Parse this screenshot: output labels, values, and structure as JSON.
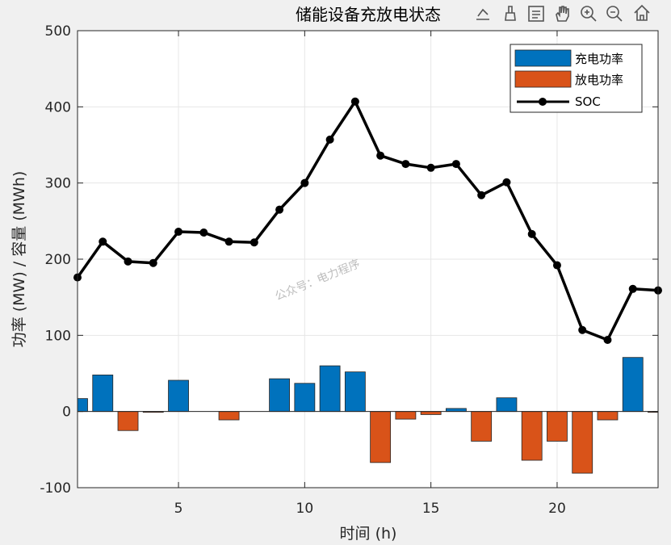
{
  "chart_data": {
    "type": "bar+line",
    "title": "储能设备充放电状态",
    "xlabel": "时间 (h)",
    "ylabel": "功率 (MW) / 容量 (MWh)",
    "xlim": [
      1,
      24
    ],
    "ylim": [
      -100,
      500
    ],
    "xticks": [
      5,
      10,
      15,
      20
    ],
    "yticks": [
      -100,
      0,
      100,
      200,
      300,
      400,
      500
    ],
    "grid": true,
    "legend_position": "top-right",
    "x": [
      1,
      2,
      3,
      4,
      5,
      6,
      7,
      8,
      9,
      10,
      11,
      12,
      13,
      14,
      15,
      16,
      17,
      18,
      19,
      20,
      21,
      22,
      23,
      24
    ],
    "series": [
      {
        "name": "充电功率",
        "type": "bar",
        "color": "#0072BD",
        "values": [
          17,
          48,
          0,
          0,
          41,
          0,
          0,
          0,
          43,
          37,
          60,
          52,
          0,
          0,
          0,
          4,
          0,
          18,
          0,
          0,
          0,
          0,
          71,
          0
        ]
      },
      {
        "name": "放电功率",
        "type": "bar",
        "color": "#D95319",
        "values": [
          0,
          0,
          -25,
          -1,
          0,
          0,
          -11,
          0,
          0,
          0,
          0,
          0,
          -67,
          -10,
          -4,
          0,
          -39,
          0,
          -64,
          -39,
          -81,
          -11,
          0,
          -1
        ]
      },
      {
        "name": "SOC",
        "type": "line",
        "color": "#000000",
        "values": [
          176,
          223,
          197,
          195,
          236,
          235,
          223,
          222,
          265,
          300,
          357,
          407,
          336,
          325,
          320,
          325,
          284,
          301,
          233,
          192,
          107,
          94,
          161,
          159
        ]
      }
    ]
  },
  "watermark": "公众号：电力程序",
  "toolbar": [
    "export-icon",
    "brush-icon",
    "datatip-icon",
    "pan-icon",
    "zoom-in-icon",
    "zoom-out-icon",
    "home-icon"
  ]
}
